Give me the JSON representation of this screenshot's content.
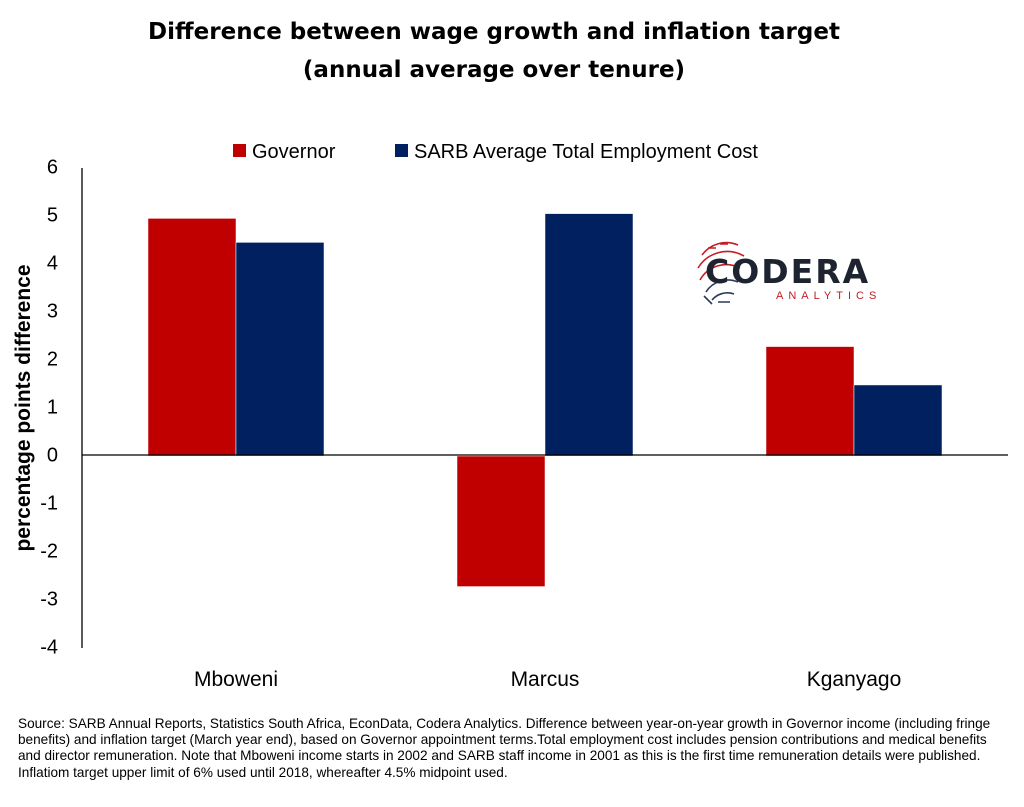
{
  "chart_data": {
    "type": "bar",
    "title_lines": [
      "Difference between wage growth and inflation target",
      "(annual average over tenure)"
    ],
    "ylabel": "percentage points difference",
    "xlabel": "",
    "categories": [
      "Mboweni",
      "Marcus",
      "Kganyago"
    ],
    "series": [
      {
        "name": "Governor",
        "color": "#c00000",
        "values": [
          4.95,
          -2.72,
          2.28
        ]
      },
      {
        "name": "SARB Average Total Employment Cost",
        "color": "#002060",
        "values": [
          4.45,
          5.05,
          1.48
        ]
      }
    ],
    "ylim": [
      -4,
      6
    ],
    "yticks": [
      6,
      5,
      4,
      3,
      2,
      1,
      0,
      -1,
      -2,
      -3,
      -4
    ],
    "legend_position": "top",
    "grid": false
  },
  "logo": {
    "name": "CODERA",
    "sub": "ANALYTICS",
    "icon": "codera-fingerprint-icon"
  },
  "source_note": "Source: SARB Annual Reports, Statistics South Africa, EconData, Codera Analytics. Difference between year-on-year growth in Governor income (including fringe benefits) and inflation target (March year end), based on Governor appointment terms.Total employment cost includes pension contributions and medical benefits and director remuneration.  Note that Mboweni income starts in 2002 and SARB staff income in 2001 as this is the first time remuneration details were published. Inflatiom target upper limit of 6% used until 2018, whereafter 4.5% midpoint used."
}
